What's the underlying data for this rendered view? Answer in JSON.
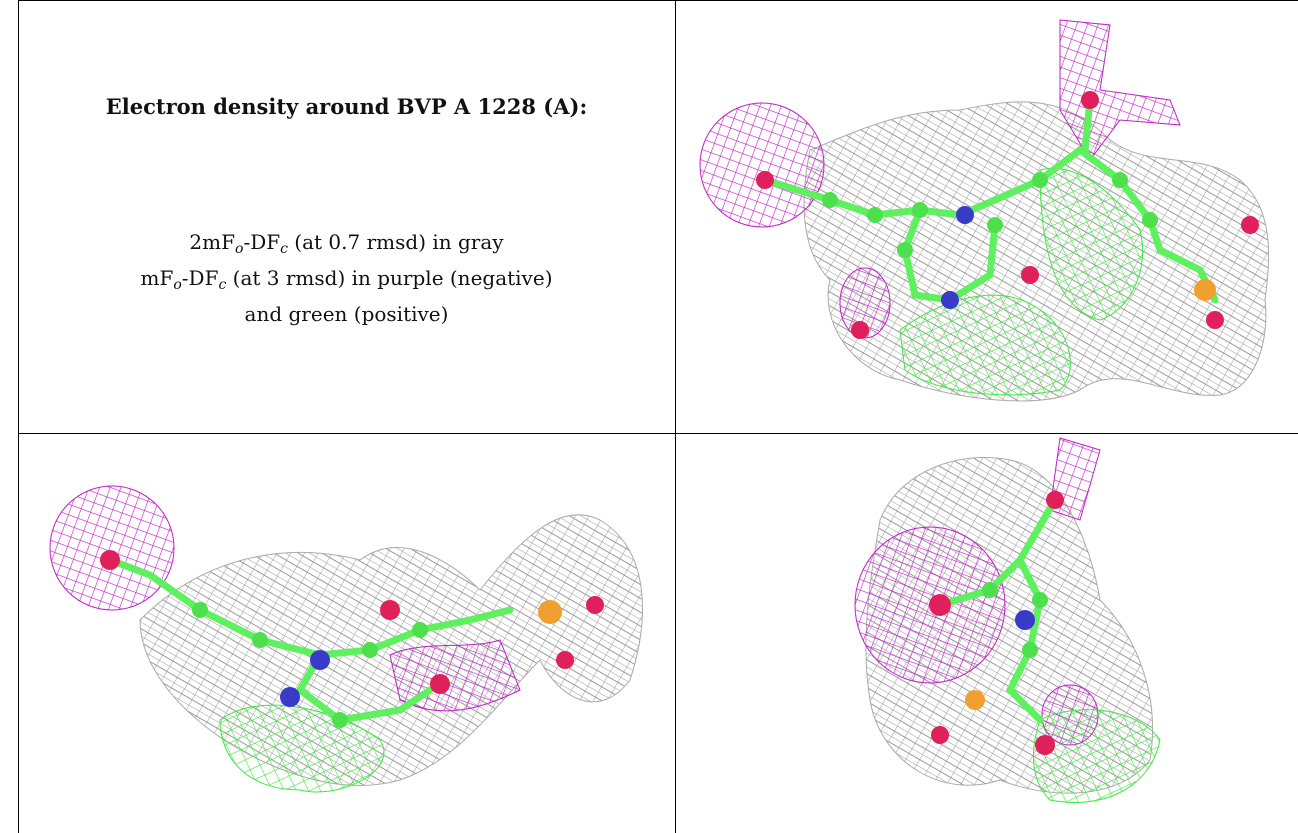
{
  "title": "Electron density around BVP A 1228 (A):",
  "legend": [
    [
      "2mF",
      "o",
      "-DF",
      "c",
      " (at 0.7 rmsd) in gray"
    ],
    [
      "mF",
      "o",
      "-DF",
      "c",
      " (at 3 rmsd) in purple (negative)"
    ],
    [
      "and green (positive)"
    ]
  ]
}
